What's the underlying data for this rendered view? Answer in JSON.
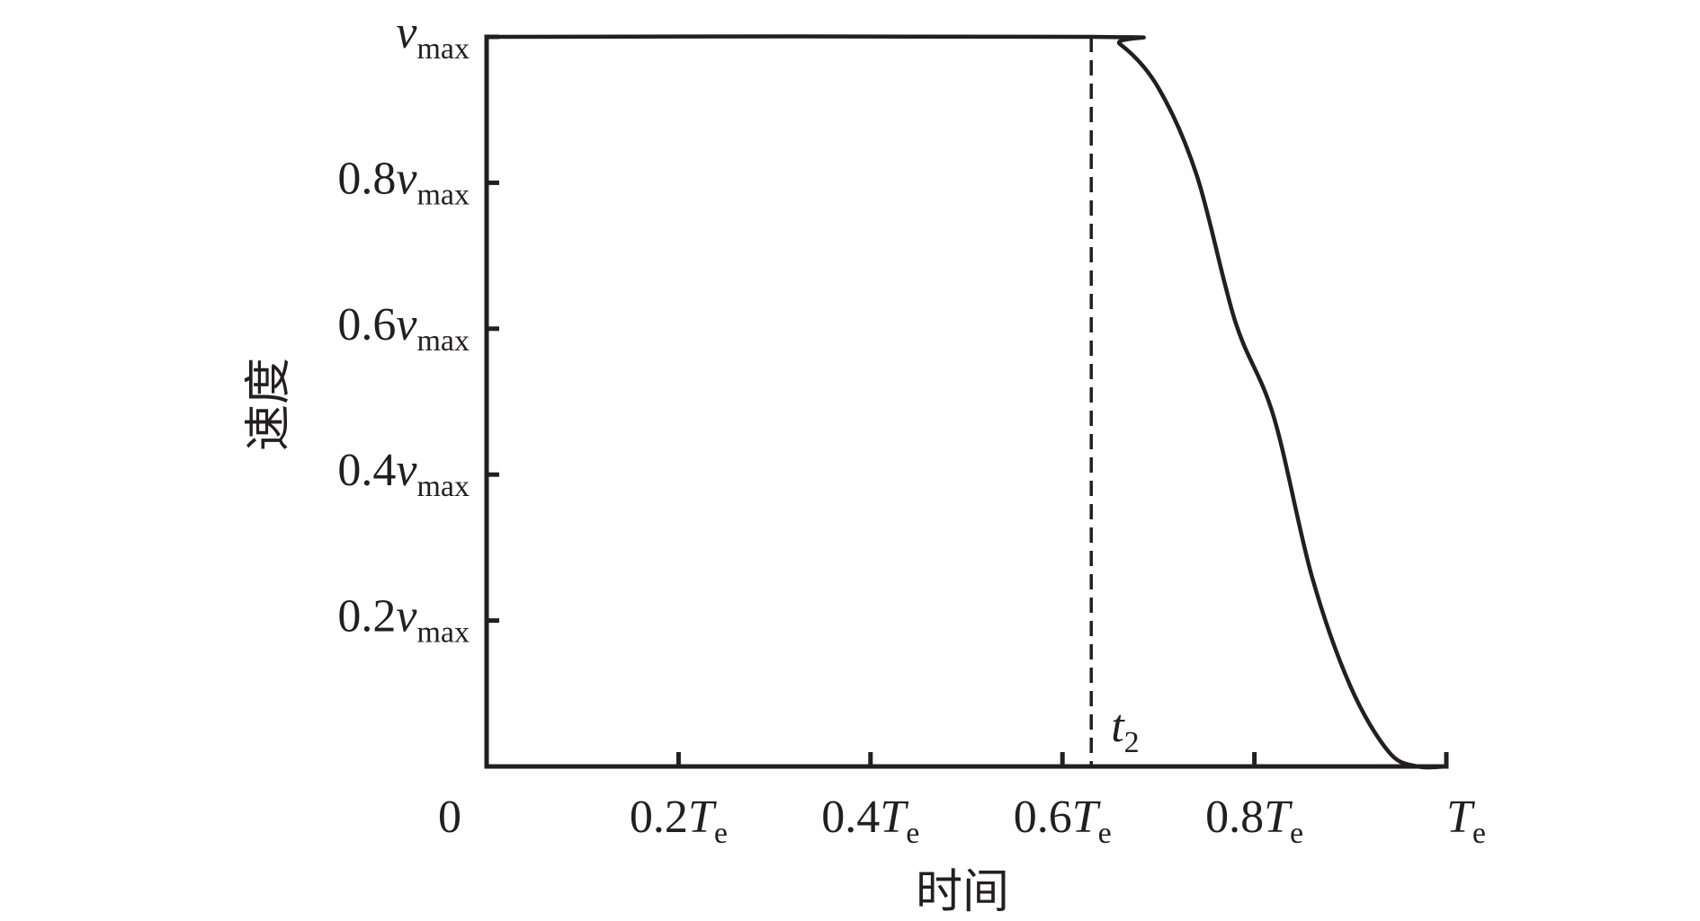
{
  "chart_data": {
    "type": "line",
    "xlabel": "时间",
    "ylabel": "速度",
    "xlim": [
      0,
      1
    ],
    "ylim": [
      0,
      1
    ],
    "grid": false,
    "x_ticks": [
      {
        "value": 0,
        "coef": "0",
        "var": "",
        "sub": ""
      },
      {
        "value": 0.2,
        "coef": "0.2",
        "var": "T",
        "sub": "e"
      },
      {
        "value": 0.4,
        "coef": "0.4",
        "var": "T",
        "sub": "e"
      },
      {
        "value": 0.6,
        "coef": "0.6",
        "var": "T",
        "sub": "e"
      },
      {
        "value": 0.8,
        "coef": "0.8",
        "var": "T",
        "sub": "e"
      },
      {
        "value": 1.0,
        "coef": "",
        "var": "T",
        "sub": "e"
      }
    ],
    "y_ticks": [
      {
        "value": 0.2,
        "coef": "0.2",
        "var": "v",
        "sub": "max"
      },
      {
        "value": 0.4,
        "coef": "0.4",
        "var": "v",
        "sub": "max"
      },
      {
        "value": 0.6,
        "coef": "0.6",
        "var": "v",
        "sub": "max"
      },
      {
        "value": 0.8,
        "coef": "0.8",
        "var": "v",
        "sub": "max"
      },
      {
        "value": 1.0,
        "coef": "",
        "var": "v",
        "sub": "max"
      }
    ],
    "series": [
      {
        "x": [
          0,
          0.63,
          0.66,
          0.7,
          0.74,
          0.78,
          0.82,
          0.86,
          0.9,
          0.94,
          0.97,
          1.0
        ],
        "y": [
          1.0,
          1.0,
          0.99,
          0.93,
          0.81,
          0.61,
          0.48,
          0.26,
          0.11,
          0.02,
          0.0,
          0.0
        ]
      }
    ],
    "annotations": [
      {
        "type": "vline",
        "x": 0.63,
        "style": "dashed",
        "label_var": "t",
        "label_sub": "2"
      }
    ]
  }
}
